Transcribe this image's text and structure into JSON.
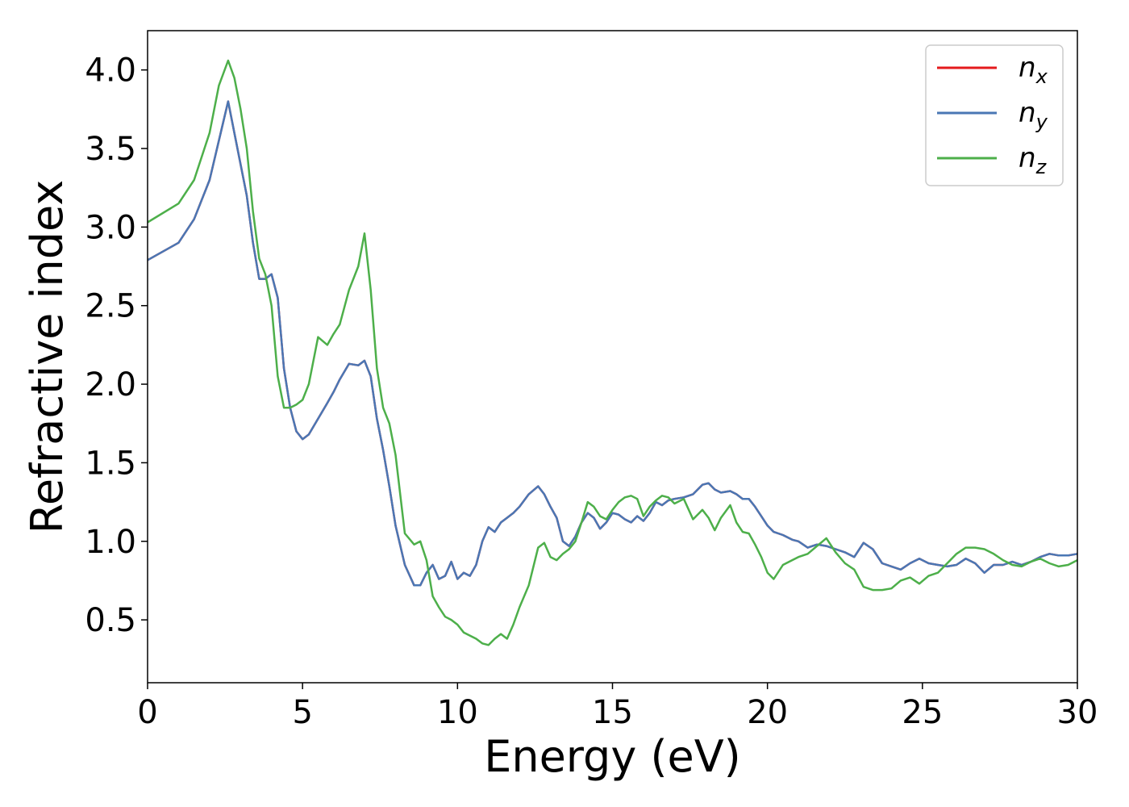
{
  "chart_data": {
    "type": "line",
    "title": "",
    "xlabel": "Energy (eV)",
    "ylabel": "Refractive index",
    "xlim": [
      0,
      30
    ],
    "ylim": [
      0.1,
      4.25
    ],
    "xticks": [
      0,
      5,
      10,
      15,
      20,
      25,
      30
    ],
    "xtick_labels": [
      "0",
      "5",
      "10",
      "15",
      "20",
      "25",
      "30"
    ],
    "yticks": [
      0.5,
      1.0,
      1.5,
      2.0,
      2.5,
      3.0,
      3.5,
      4.0
    ],
    "ytick_labels": [
      "0.5",
      "1.0",
      "1.5",
      "2.0",
      "2.5",
      "3.0",
      "3.5",
      "4.0"
    ],
    "grid": false,
    "legend_position": "top-right",
    "series": [
      {
        "name": "n",
        "subscript": "x",
        "color": "#e41a1c",
        "x": [
          0,
          1,
          1.5,
          2,
          2.3,
          2.6,
          2.8,
          3.0,
          3.2,
          3.4,
          3.6,
          3.8,
          4.0,
          4.2,
          4.4,
          4.6,
          4.8,
          5.0,
          5.2,
          5.5,
          5.8,
          6.0,
          6.2,
          6.5,
          6.8,
          7.0,
          7.2,
          7.4,
          7.6,
          7.8,
          8.0,
          8.3,
          8.6,
          8.8,
          9.0,
          9.2,
          9.4,
          9.6,
          9.8,
          10.0,
          10.2,
          10.4,
          10.6,
          10.8,
          11.0,
          11.2,
          11.4,
          11.6,
          11.8,
          12.0,
          12.3,
          12.6,
          12.8,
          13.0,
          13.2,
          13.4,
          13.6,
          13.8,
          14.0,
          14.2,
          14.4,
          14.6,
          14.8,
          15.0,
          15.2,
          15.4,
          15.6,
          15.8,
          16.0,
          16.2,
          16.4,
          16.6,
          16.8,
          17.0,
          17.3,
          17.6,
          17.9,
          18.1,
          18.3,
          18.5,
          18.8,
          19.0,
          19.2,
          19.4,
          19.6,
          19.8,
          20.0,
          20.2,
          20.5,
          20.8,
          21.0,
          21.3,
          21.6,
          21.9,
          22.2,
          22.5,
          22.8,
          23.1,
          23.4,
          23.7,
          24.0,
          24.3,
          24.6,
          24.9,
          25.2,
          25.5,
          25.8,
          26.1,
          26.4,
          26.7,
          27.0,
          27.3,
          27.6,
          27.9,
          28.2,
          28.5,
          28.8,
          29.1,
          29.4,
          29.7,
          30.0
        ],
        "values": [
          2.79,
          2.9,
          3.05,
          3.3,
          3.55,
          3.8,
          3.6,
          3.4,
          3.2,
          2.9,
          2.67,
          2.67,
          2.7,
          2.55,
          2.1,
          1.85,
          1.7,
          1.65,
          1.68,
          1.78,
          1.88,
          1.95,
          2.03,
          2.13,
          2.12,
          2.15,
          2.05,
          1.78,
          1.58,
          1.35,
          1.1,
          0.85,
          0.72,
          0.72,
          0.8,
          0.85,
          0.76,
          0.78,
          0.87,
          0.76,
          0.8,
          0.78,
          0.85,
          1.0,
          1.09,
          1.06,
          1.12,
          1.15,
          1.18,
          1.22,
          1.3,
          1.35,
          1.3,
          1.22,
          1.15,
          1.0,
          0.97,
          1.03,
          1.12,
          1.18,
          1.15,
          1.08,
          1.12,
          1.18,
          1.17,
          1.14,
          1.12,
          1.16,
          1.13,
          1.18,
          1.25,
          1.23,
          1.26,
          1.27,
          1.28,
          1.3,
          1.36,
          1.37,
          1.33,
          1.31,
          1.32,
          1.3,
          1.27,
          1.27,
          1.22,
          1.16,
          1.1,
          1.06,
          1.04,
          1.01,
          1.0,
          0.96,
          0.98,
          0.97,
          0.95,
          0.93,
          0.9,
          0.99,
          0.95,
          0.86,
          0.84,
          0.82,
          0.86,
          0.89,
          0.86,
          0.85,
          0.84,
          0.85,
          0.89,
          0.86,
          0.8,
          0.85,
          0.85,
          0.87,
          0.85,
          0.87,
          0.9,
          0.92,
          0.91,
          0.91,
          0.92
        ]
      },
      {
        "name": "n",
        "subscript": "y",
        "color": "#4a77b4",
        "x": [
          0,
          1,
          1.5,
          2,
          2.3,
          2.6,
          2.8,
          3.0,
          3.2,
          3.4,
          3.6,
          3.8,
          4.0,
          4.2,
          4.4,
          4.6,
          4.8,
          5.0,
          5.2,
          5.5,
          5.8,
          6.0,
          6.2,
          6.5,
          6.8,
          7.0,
          7.2,
          7.4,
          7.6,
          7.8,
          8.0,
          8.3,
          8.6,
          8.8,
          9.0,
          9.2,
          9.4,
          9.6,
          9.8,
          10.0,
          10.2,
          10.4,
          10.6,
          10.8,
          11.0,
          11.2,
          11.4,
          11.6,
          11.8,
          12.0,
          12.3,
          12.6,
          12.8,
          13.0,
          13.2,
          13.4,
          13.6,
          13.8,
          14.0,
          14.2,
          14.4,
          14.6,
          14.8,
          15.0,
          15.2,
          15.4,
          15.6,
          15.8,
          16.0,
          16.2,
          16.4,
          16.6,
          16.8,
          17.0,
          17.3,
          17.6,
          17.9,
          18.1,
          18.3,
          18.5,
          18.8,
          19.0,
          19.2,
          19.4,
          19.6,
          19.8,
          20.0,
          20.2,
          20.5,
          20.8,
          21.0,
          21.3,
          21.6,
          21.9,
          22.2,
          22.5,
          22.8,
          23.1,
          23.4,
          23.7,
          24.0,
          24.3,
          24.6,
          24.9,
          25.2,
          25.5,
          25.8,
          26.1,
          26.4,
          26.7,
          27.0,
          27.3,
          27.6,
          27.9,
          28.2,
          28.5,
          28.8,
          29.1,
          29.4,
          29.7,
          30.0
        ],
        "values": [
          2.79,
          2.9,
          3.05,
          3.3,
          3.55,
          3.8,
          3.6,
          3.4,
          3.2,
          2.9,
          2.67,
          2.67,
          2.7,
          2.55,
          2.1,
          1.85,
          1.7,
          1.65,
          1.68,
          1.78,
          1.88,
          1.95,
          2.03,
          2.13,
          2.12,
          2.15,
          2.05,
          1.78,
          1.58,
          1.35,
          1.1,
          0.85,
          0.72,
          0.72,
          0.8,
          0.85,
          0.76,
          0.78,
          0.87,
          0.76,
          0.8,
          0.78,
          0.85,
          1.0,
          1.09,
          1.06,
          1.12,
          1.15,
          1.18,
          1.22,
          1.3,
          1.35,
          1.3,
          1.22,
          1.15,
          1.0,
          0.97,
          1.03,
          1.12,
          1.18,
          1.15,
          1.08,
          1.12,
          1.18,
          1.17,
          1.14,
          1.12,
          1.16,
          1.13,
          1.18,
          1.25,
          1.23,
          1.26,
          1.27,
          1.28,
          1.3,
          1.36,
          1.37,
          1.33,
          1.31,
          1.32,
          1.3,
          1.27,
          1.27,
          1.22,
          1.16,
          1.1,
          1.06,
          1.04,
          1.01,
          1.0,
          0.96,
          0.98,
          0.97,
          0.95,
          0.93,
          0.9,
          0.99,
          0.95,
          0.86,
          0.84,
          0.82,
          0.86,
          0.89,
          0.86,
          0.85,
          0.84,
          0.85,
          0.89,
          0.86,
          0.8,
          0.85,
          0.85,
          0.87,
          0.85,
          0.87,
          0.9,
          0.92,
          0.91,
          0.91,
          0.92
        ]
      },
      {
        "name": "n",
        "subscript": "z",
        "color": "#4daf4a",
        "x": [
          0,
          1,
          1.5,
          2,
          2.3,
          2.6,
          2.8,
          3.0,
          3.2,
          3.4,
          3.6,
          3.8,
          4.0,
          4.2,
          4.4,
          4.6,
          4.8,
          5.0,
          5.2,
          5.5,
          5.8,
          6.0,
          6.2,
          6.5,
          6.8,
          7.0,
          7.2,
          7.4,
          7.6,
          7.8,
          8.0,
          8.3,
          8.6,
          8.8,
          9.0,
          9.2,
          9.4,
          9.6,
          9.8,
          10.0,
          10.2,
          10.4,
          10.6,
          10.8,
          11.0,
          11.2,
          11.4,
          11.6,
          11.8,
          12.0,
          12.3,
          12.6,
          12.8,
          13.0,
          13.2,
          13.4,
          13.6,
          13.8,
          14.0,
          14.2,
          14.4,
          14.6,
          14.8,
          15.0,
          15.2,
          15.4,
          15.6,
          15.8,
          16.0,
          16.2,
          16.4,
          16.6,
          16.8,
          17.0,
          17.3,
          17.6,
          17.9,
          18.1,
          18.3,
          18.5,
          18.8,
          19.0,
          19.2,
          19.4,
          19.6,
          19.8,
          20.0,
          20.2,
          20.5,
          20.8,
          21.0,
          21.3,
          21.6,
          21.9,
          22.2,
          22.5,
          22.8,
          23.1,
          23.4,
          23.7,
          24.0,
          24.3,
          24.6,
          24.9,
          25.2,
          25.5,
          25.8,
          26.1,
          26.4,
          26.7,
          27.0,
          27.3,
          27.6,
          27.9,
          28.2,
          28.5,
          28.8,
          29.1,
          29.4,
          29.7,
          30.0
        ],
        "values": [
          3.03,
          3.15,
          3.3,
          3.6,
          3.9,
          4.06,
          3.95,
          3.75,
          3.5,
          3.1,
          2.8,
          2.7,
          2.5,
          2.05,
          1.85,
          1.85,
          1.87,
          1.9,
          2.0,
          2.3,
          2.25,
          2.32,
          2.38,
          2.6,
          2.75,
          2.96,
          2.6,
          2.1,
          1.85,
          1.75,
          1.55,
          1.05,
          0.98,
          1.0,
          0.88,
          0.65,
          0.58,
          0.52,
          0.5,
          0.47,
          0.42,
          0.4,
          0.38,
          0.35,
          0.34,
          0.38,
          0.41,
          0.38,
          0.47,
          0.58,
          0.72,
          0.96,
          0.99,
          0.9,
          0.88,
          0.92,
          0.95,
          1.0,
          1.12,
          1.25,
          1.22,
          1.16,
          1.14,
          1.2,
          1.25,
          1.28,
          1.29,
          1.27,
          1.16,
          1.22,
          1.26,
          1.29,
          1.28,
          1.24,
          1.27,
          1.14,
          1.2,
          1.15,
          1.07,
          1.15,
          1.23,
          1.12,
          1.06,
          1.05,
          0.98,
          0.9,
          0.8,
          0.76,
          0.85,
          0.88,
          0.9,
          0.92,
          0.97,
          1.02,
          0.93,
          0.86,
          0.82,
          0.71,
          0.69,
          0.69,
          0.7,
          0.75,
          0.77,
          0.73,
          0.78,
          0.8,
          0.86,
          0.92,
          0.96,
          0.96,
          0.95,
          0.92,
          0.88,
          0.85,
          0.84,
          0.87,
          0.89,
          0.86,
          0.84,
          0.85,
          0.88
        ]
      }
    ]
  }
}
